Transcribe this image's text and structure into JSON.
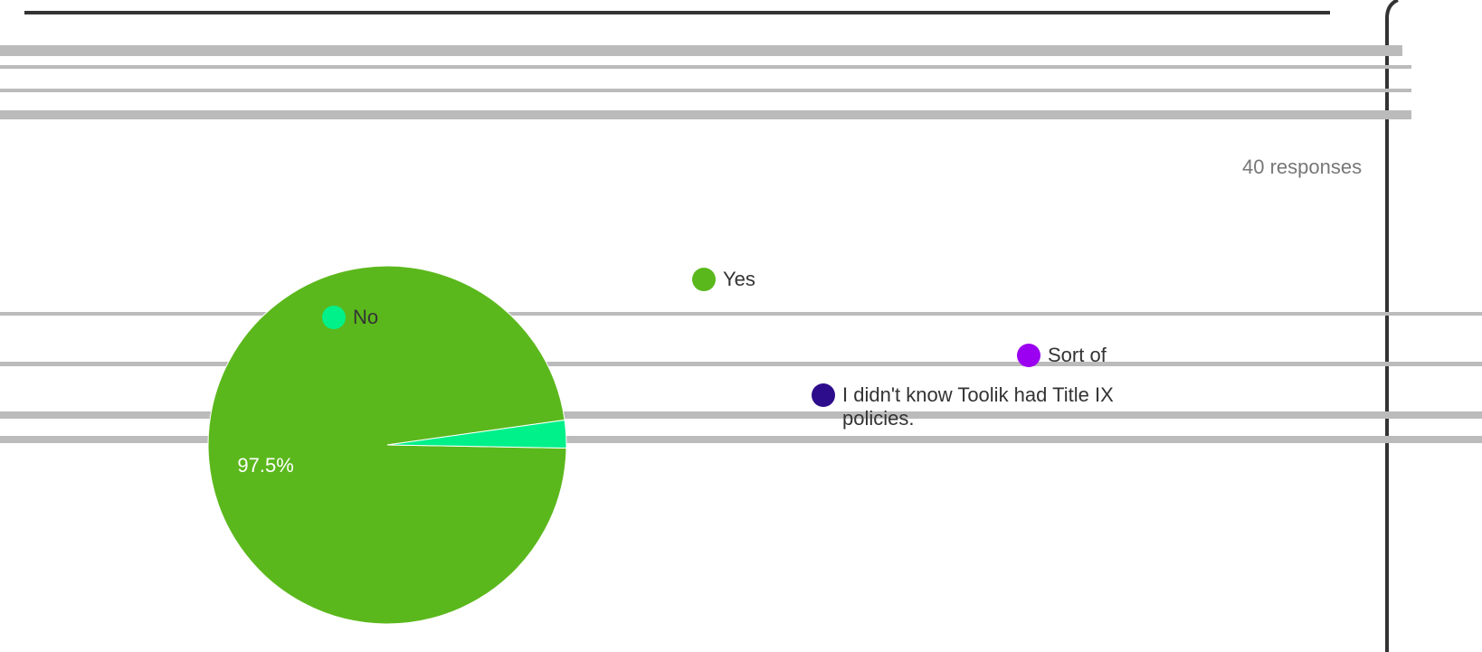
{
  "responses": "40 responses",
  "chart_data": {
    "type": "pie",
    "categories": [
      "Yes",
      "No",
      "Sort of",
      "I didn't know Toolik had Title IX policies."
    ],
    "values": [
      97.5,
      2.5,
      0,
      0
    ],
    "value_labels": [
      "97.5%",
      null,
      null,
      null
    ],
    "colors": [
      "#5bb81c",
      "#00f08a",
      "#9b00f0",
      "#2e0d8c"
    ]
  }
}
